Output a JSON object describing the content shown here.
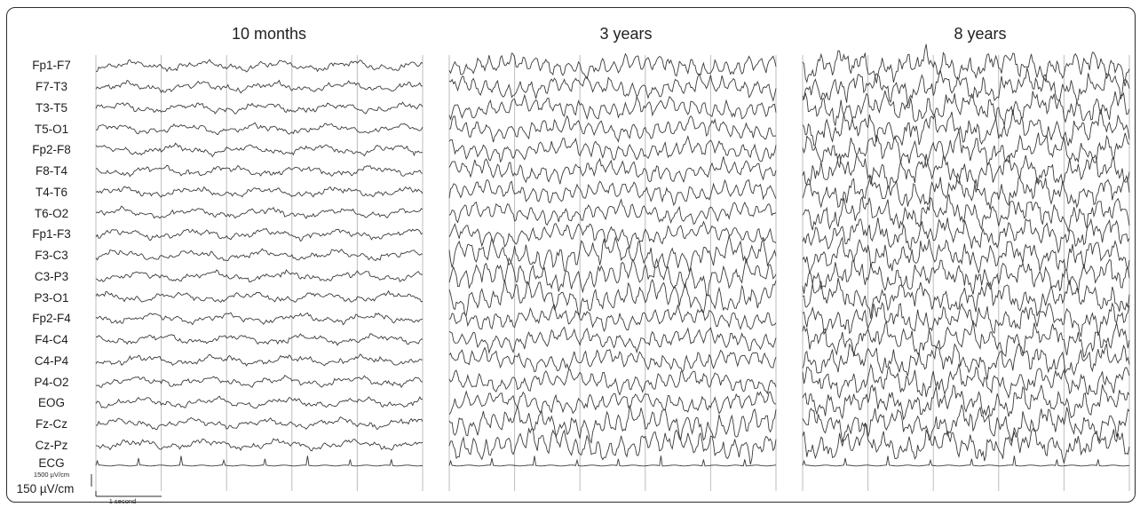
{
  "figure": {
    "panels": [
      {
        "title": "10 months",
        "seed": 11,
        "style": "infant"
      },
      {
        "title": "3 years",
        "seed": 37,
        "style": "child"
      },
      {
        "title": "8 years",
        "seed": 73,
        "style": "older"
      }
    ],
    "channels": [
      "Fp1-F7",
      "F7-T3",
      "T3-T5",
      "T5-O1",
      "Fp2-F8",
      "F8-T4",
      "T4-T6",
      "T6-O2",
      "Fp1-F3",
      "F3-C3",
      "C3-P3",
      "P3-O1",
      "Fp2-F4",
      "F4-C4",
      "C4-P4",
      "P4-O2",
      "EOG",
      "Fz-Cz",
      "Cz-Pz",
      "ECG"
    ],
    "ecg_scale_label": "1500 µV/cm",
    "amplitude_scale_label": "150 µV/cm",
    "time_scale_label": "1 second",
    "seconds_per_panel": 5,
    "colors": {
      "trace": "#3a3a3a",
      "gridline": "#bdbdbd",
      "frame": "#2b2b2b"
    }
  }
}
